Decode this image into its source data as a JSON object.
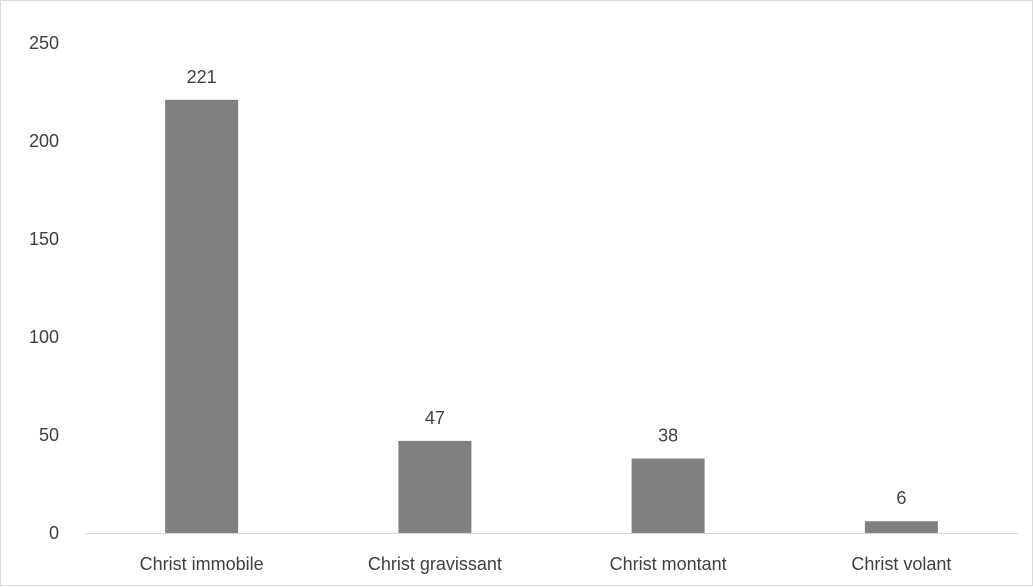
{
  "chart_data": {
    "type": "bar",
    "categories": [
      "Christ immobile",
      "Christ gravissant",
      "Christ montant",
      "Christ volant"
    ],
    "values": [
      221,
      47,
      38,
      6
    ],
    "data_labels": [
      "221",
      "47",
      "38",
      "6"
    ],
    "title": "",
    "xlabel": "",
    "ylabel": "",
    "ylim": [
      0,
      250
    ],
    "yticks": [
      0,
      50,
      100,
      150,
      200,
      250
    ],
    "ytick_labels": [
      "0",
      "50",
      "100",
      "150",
      "200",
      "250"
    ],
    "grid": false,
    "legend": "none",
    "bar_color": "#808080",
    "axis_color": "#d9d9d9",
    "text_color": "#404040"
  }
}
